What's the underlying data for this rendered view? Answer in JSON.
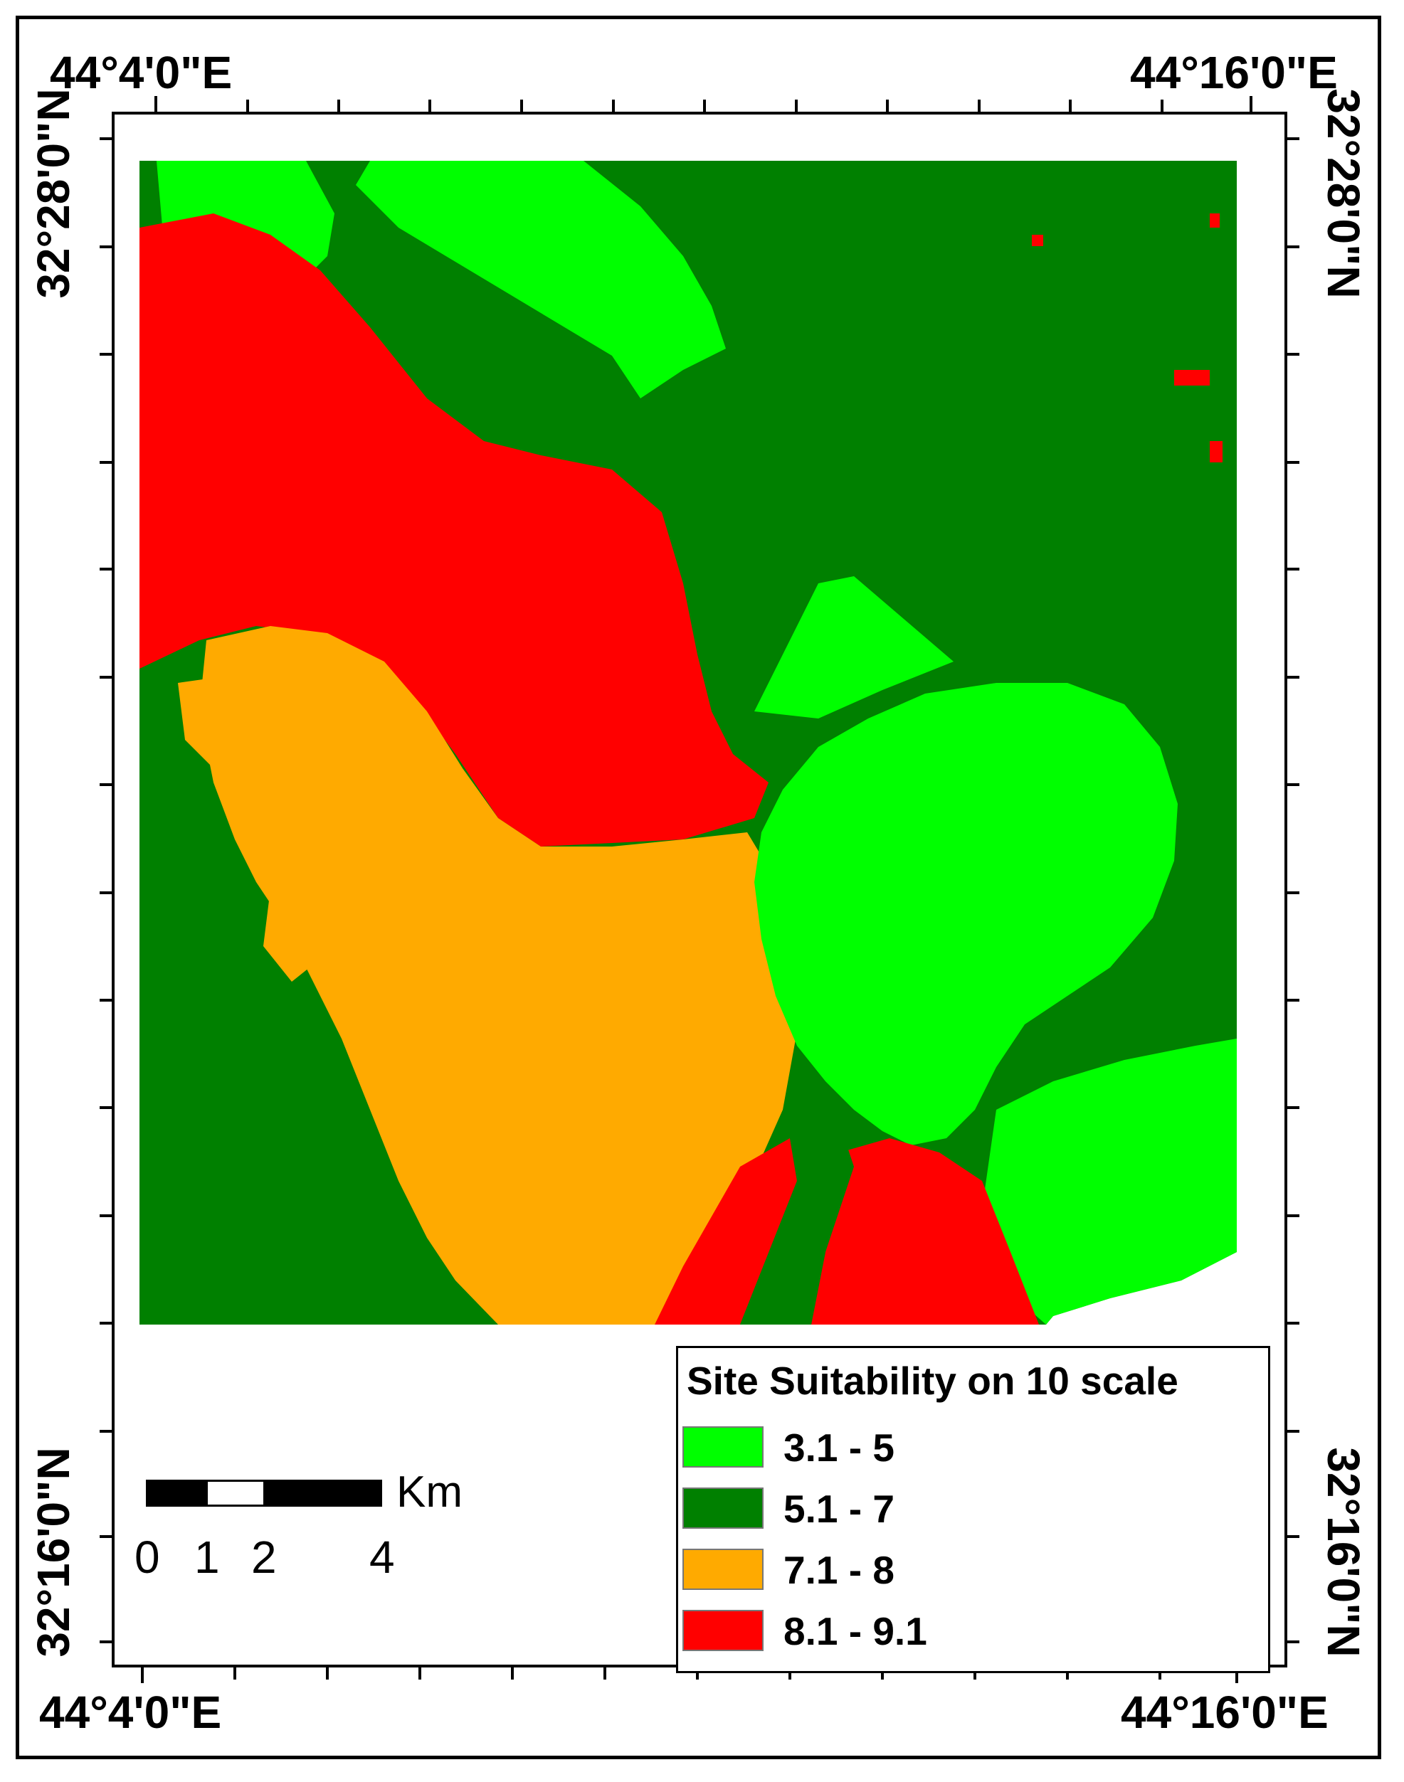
{
  "map": {
    "coordinates": {
      "lon_west": "44°4'0\"E",
      "lon_east": "44°16'0\"E",
      "lat_north": "32°28'0\"N",
      "lat_south": "32°16'0\"N"
    },
    "colors": {
      "class_3_1_5": "#00FF00",
      "class_5_1_7": "#008000",
      "class_7_1_8": "#FFAA00",
      "class_8_1_9_1": "#FF0000"
    }
  },
  "legend": {
    "title": "Site Suitability on 10 scale",
    "items": [
      {
        "label": "3.1 - 5",
        "color": "#00FF00"
      },
      {
        "label": "5.1 - 7",
        "color": "#008000"
      },
      {
        "label": "7.1 - 8",
        "color": "#FFAA00"
      },
      {
        "label": "8.1 - 9.1",
        "color": "#FF0000"
      }
    ]
  },
  "scale_bar": {
    "unit": "Km",
    "ticks": [
      "0",
      "1",
      "2",
      "4"
    ]
  }
}
